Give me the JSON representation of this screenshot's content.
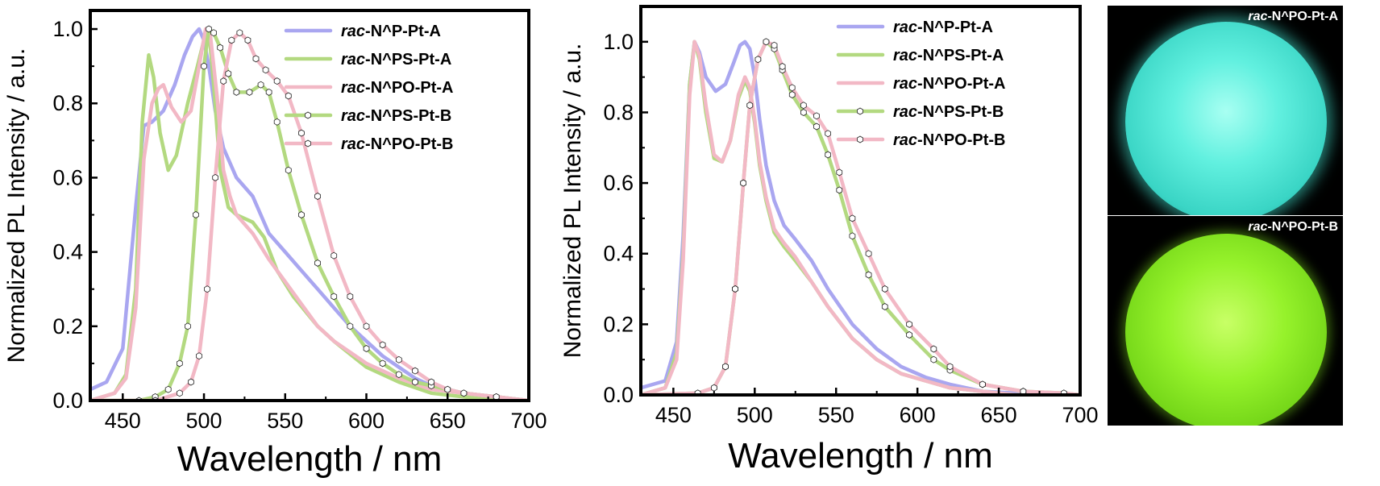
{
  "chart_data": [
    {
      "type": "line",
      "panel": "left",
      "xlabel": "Wavelength / nm",
      "ylabel": "Normalized PL Intensity / a.u.",
      "xlim": [
        430,
        700
      ],
      "ylim": [
        0,
        1.05
      ],
      "xticks": [
        450,
        500,
        550,
        600,
        650,
        700
      ],
      "yticks": [
        0.0,
        0.2,
        0.4,
        0.6,
        0.8,
        1.0
      ],
      "tick_labels_x": [
        "450",
        "500",
        "550",
        "600",
        "650",
        "700"
      ],
      "tick_labels_y": [
        "0.0",
        "0.2",
        "0.4",
        "0.6",
        "0.8",
        "1.0"
      ],
      "grid": false,
      "legend_position": "top-right",
      "series": [
        {
          "name_prefix": "rac",
          "name_suffix": "-N^P-Pt-A",
          "color": "#a9a6f0",
          "marker": "none",
          "x": [
            430,
            440,
            450,
            458,
            463,
            468,
            475,
            482,
            488,
            493,
            497,
            500,
            503,
            507,
            512,
            520,
            530,
            540,
            550,
            560,
            570,
            580,
            590,
            600,
            610,
            620,
            630,
            640,
            650,
            660,
            680,
            700
          ],
          "y": [
            0.03,
            0.05,
            0.14,
            0.52,
            0.74,
            0.75,
            0.78,
            0.85,
            0.93,
            0.98,
            1.0,
            0.97,
            0.9,
            0.78,
            0.68,
            0.6,
            0.55,
            0.45,
            0.4,
            0.35,
            0.3,
            0.25,
            0.2,
            0.16,
            0.12,
            0.09,
            0.06,
            0.04,
            0.03,
            0.02,
            0.01,
            0.0
          ]
        },
        {
          "name_prefix": "rac",
          "name_suffix": "-N^PS-Pt-A",
          "color": "#b3d980",
          "marker": "none",
          "x": [
            430,
            445,
            452,
            458,
            462,
            466,
            469,
            473,
            478,
            483,
            490,
            496,
            500,
            503,
            506,
            510,
            515,
            520,
            530,
            537,
            545,
            555,
            570,
            580,
            600,
            620,
            640,
            660,
            680,
            700
          ],
          "y": [
            0.0,
            0.02,
            0.07,
            0.3,
            0.75,
            0.93,
            0.87,
            0.72,
            0.62,
            0.66,
            0.8,
            0.9,
            0.97,
            1.0,
            0.85,
            0.62,
            0.52,
            0.5,
            0.48,
            0.44,
            0.35,
            0.28,
            0.2,
            0.16,
            0.09,
            0.05,
            0.02,
            0.01,
            0.0,
            0.0
          ]
        },
        {
          "name_prefix": "rac",
          "name_suffix": "-N^PO-Pt-A",
          "color": "#f2b8c5",
          "marker": "none",
          "x": [
            430,
            445,
            452,
            458,
            463,
            468,
            472,
            475,
            480,
            486,
            492,
            497,
            501,
            504,
            508,
            512,
            516,
            520,
            530,
            540,
            550,
            560,
            570,
            580,
            600,
            620,
            640,
            660,
            680,
            700
          ],
          "y": [
            0.0,
            0.02,
            0.06,
            0.25,
            0.65,
            0.8,
            0.84,
            0.85,
            0.79,
            0.75,
            0.78,
            0.9,
            1.0,
            0.98,
            0.82,
            0.62,
            0.55,
            0.5,
            0.45,
            0.38,
            0.32,
            0.26,
            0.2,
            0.16,
            0.1,
            0.06,
            0.03,
            0.02,
            0.01,
            0.0
          ]
        },
        {
          "name_prefix": "rac",
          "name_suffix": "-N^PS-Pt-B",
          "color": "#b3d980",
          "marker": "hexagon",
          "x": [
            430,
            460,
            470,
            478,
            485,
            490,
            495,
            500,
            503,
            506,
            510,
            515,
            520,
            528,
            535,
            540,
            545,
            552,
            560,
            570,
            580,
            590,
            600,
            610,
            620,
            630,
            640,
            650,
            660,
            680,
            700
          ],
          "y": [
            0.0,
            0.0,
            0.01,
            0.03,
            0.1,
            0.2,
            0.5,
            0.9,
            1.0,
            0.99,
            0.95,
            0.88,
            0.83,
            0.83,
            0.85,
            0.83,
            0.75,
            0.62,
            0.5,
            0.37,
            0.28,
            0.2,
            0.14,
            0.1,
            0.07,
            0.05,
            0.04,
            0.03,
            0.02,
            0.01,
            0.0
          ]
        },
        {
          "name_prefix": "rac",
          "name_suffix": "-N^PO-Pt-B",
          "color": "#f2b8c5",
          "marker": "hexagon",
          "x": [
            430,
            470,
            485,
            492,
            497,
            502,
            507,
            512,
            517,
            522,
            527,
            532,
            538,
            545,
            552,
            560,
            570,
            580,
            590,
            600,
            610,
            620,
            630,
            640,
            650,
            660,
            680,
            700
          ],
          "y": [
            0.0,
            0.0,
            0.02,
            0.05,
            0.12,
            0.3,
            0.6,
            0.86,
            0.97,
            0.99,
            0.97,
            0.92,
            0.89,
            0.86,
            0.82,
            0.72,
            0.55,
            0.39,
            0.28,
            0.2,
            0.15,
            0.11,
            0.08,
            0.05,
            0.03,
            0.02,
            0.01,
            0.0
          ]
        }
      ]
    },
    {
      "type": "line",
      "panel": "middle",
      "xlabel": "Wavelength / nm",
      "ylabel": "Normalized PL Intensity / a.u.",
      "xlim": [
        430,
        700
      ],
      "ylim": [
        0,
        1.1
      ],
      "xticks": [
        450,
        500,
        550,
        600,
        650,
        700
      ],
      "yticks": [
        0.0,
        0.2,
        0.4,
        0.6,
        0.8,
        1.0
      ],
      "tick_labels_x": [
        "450",
        "500",
        "550",
        "600",
        "650",
        "700"
      ],
      "tick_labels_y": [
        "0.0",
        "0.2",
        "0.4",
        "0.6",
        "0.8",
        "1.0"
      ],
      "grid": false,
      "legend_position": "top-right",
      "series": [
        {
          "name_prefix": "rac",
          "name_suffix": "-N^P-Pt-A",
          "color": "#a9a6f0",
          "marker": "none",
          "x": [
            430,
            445,
            452,
            456,
            460,
            463,
            466,
            470,
            476,
            482,
            487,
            491,
            494,
            497,
            500,
            503,
            507,
            512,
            518,
            525,
            535,
            545,
            560,
            575,
            590,
            605,
            620,
            640,
            660,
            680,
            700
          ],
          "y": [
            0.02,
            0.04,
            0.15,
            0.45,
            0.88,
            1.0,
            0.97,
            0.9,
            0.86,
            0.88,
            0.94,
            0.99,
            1.0,
            0.98,
            0.9,
            0.78,
            0.65,
            0.55,
            0.48,
            0.44,
            0.38,
            0.3,
            0.2,
            0.13,
            0.08,
            0.05,
            0.03,
            0.01,
            0.005,
            0.0,
            0.0
          ]
        },
        {
          "name_prefix": "rac",
          "name_suffix": "-N^PS-Pt-A",
          "color": "#b3d980",
          "marker": "none",
          "x": [
            430,
            445,
            452,
            456,
            460,
            463,
            466,
            470,
            475,
            480,
            485,
            490,
            494,
            497,
            500,
            503,
            507,
            512,
            518,
            525,
            535,
            545,
            560,
            575,
            590,
            605,
            620,
            640,
            660,
            680,
            700
          ],
          "y": [
            0.0,
            0.02,
            0.12,
            0.4,
            0.88,
            1.0,
            0.95,
            0.8,
            0.67,
            0.66,
            0.72,
            0.84,
            0.89,
            0.86,
            0.77,
            0.65,
            0.55,
            0.46,
            0.42,
            0.38,
            0.32,
            0.25,
            0.16,
            0.1,
            0.06,
            0.04,
            0.02,
            0.01,
            0.0,
            0.0,
            0.0
          ]
        },
        {
          "name_prefix": "rac",
          "name_suffix": "-N^PO-Pt-A",
          "color": "#f2b8c5",
          "marker": "none",
          "x": [
            430,
            445,
            452,
            456,
            460,
            463,
            466,
            470,
            475,
            480,
            485,
            490,
            494,
            497,
            500,
            503,
            507,
            512,
            518,
            525,
            535,
            545,
            560,
            575,
            590,
            605,
            620,
            640,
            660,
            680,
            700
          ],
          "y": [
            0.0,
            0.02,
            0.1,
            0.38,
            0.85,
            1.0,
            0.96,
            0.82,
            0.68,
            0.66,
            0.72,
            0.85,
            0.9,
            0.87,
            0.78,
            0.66,
            0.56,
            0.47,
            0.43,
            0.39,
            0.32,
            0.25,
            0.16,
            0.1,
            0.06,
            0.04,
            0.02,
            0.01,
            0.0,
            0.0,
            0.0
          ]
        },
        {
          "name_prefix": "rac",
          "name_suffix": "-N^PS-Pt-B",
          "color": "#b3d980",
          "marker": "hexagon",
          "x": [
            430,
            465,
            475,
            482,
            488,
            493,
            497,
            502,
            507,
            512,
            517,
            523,
            530,
            538,
            545,
            552,
            560,
            570,
            580,
            595,
            610,
            620,
            640,
            665,
            690,
            700
          ],
          "y": [
            0.0,
            0.005,
            0.02,
            0.08,
            0.3,
            0.6,
            0.82,
            0.95,
            1.0,
            0.98,
            0.92,
            0.85,
            0.8,
            0.76,
            0.68,
            0.58,
            0.45,
            0.34,
            0.25,
            0.17,
            0.1,
            0.07,
            0.03,
            0.01,
            0.005,
            0.0
          ]
        },
        {
          "name_prefix": "rac",
          "name_suffix": "-N^PO-Pt-B",
          "color": "#f2b8c5",
          "marker": "hexagon",
          "x": [
            430,
            465,
            475,
            482,
            488,
            493,
            497,
            502,
            507,
            512,
            517,
            523,
            530,
            538,
            545,
            552,
            560,
            570,
            580,
            595,
            610,
            620,
            640,
            665,
            690,
            700
          ],
          "y": [
            0.0,
            0.005,
            0.02,
            0.08,
            0.3,
            0.6,
            0.82,
            0.95,
            1.0,
            0.99,
            0.93,
            0.87,
            0.82,
            0.79,
            0.74,
            0.63,
            0.5,
            0.4,
            0.3,
            0.2,
            0.13,
            0.08,
            0.03,
            0.01,
            0.005,
            0.0
          ]
        }
      ]
    }
  ],
  "photos": {
    "top": {
      "prefix": "rac",
      "suffix": "-N^PO-Pt-A",
      "glow_color": "#61f0df"
    },
    "bottom": {
      "prefix": "rac",
      "suffix": "-N^PO-Pt-B",
      "glow_color": "#96f22b"
    }
  }
}
